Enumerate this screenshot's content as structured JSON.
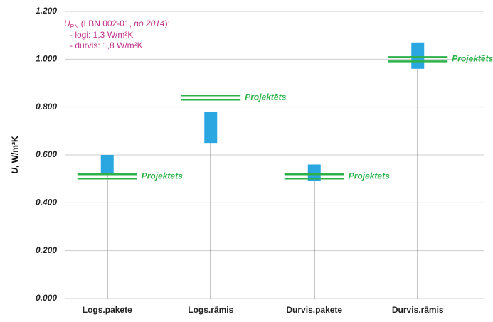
{
  "chart_data": {
    "type": "range",
    "y_label": {
      "symbol": "U",
      "text": ", W/m²K"
    },
    "annotation": {
      "symbol": "U",
      "subscript": "RN",
      "text": " (LBN 002-01, ",
      "italic": "no 2014",
      "end": "):",
      "lines": [
        "- logi: 1,3 W/m²K",
        "- durvis: 1,8 W/m²K"
      ]
    },
    "categories": [
      "Logs.pakete",
      "Logs.rāmis",
      "Durvis.pakete",
      "Durvis.rāmis"
    ],
    "low": [
      0.52,
      0.65,
      0.49,
      0.96
    ],
    "high": [
      0.6,
      0.78,
      0.56,
      1.07
    ],
    "color": "#2aa7e1",
    "series": [
      {
        "name": "Projektēts",
        "color": "#2db24a",
        "values": [
          0.51,
          0.84,
          0.51,
          1.0
        ]
      }
    ],
    "ylim": [
      0,
      1.2
    ],
    "yticks": [
      {
        "value": 0,
        "label": "0.000"
      },
      {
        "value": 0.2,
        "label": "0.200"
      },
      {
        "value": 0.4,
        "label": "0.400"
      },
      {
        "value": 0.6,
        "label": "0.600"
      },
      {
        "value": 0.8,
        "label": "0.800"
      },
      {
        "value": 1.0,
        "label": "1.000"
      },
      {
        "value": 1.2,
        "label": "1.200"
      }
    ],
    "grid": true
  }
}
